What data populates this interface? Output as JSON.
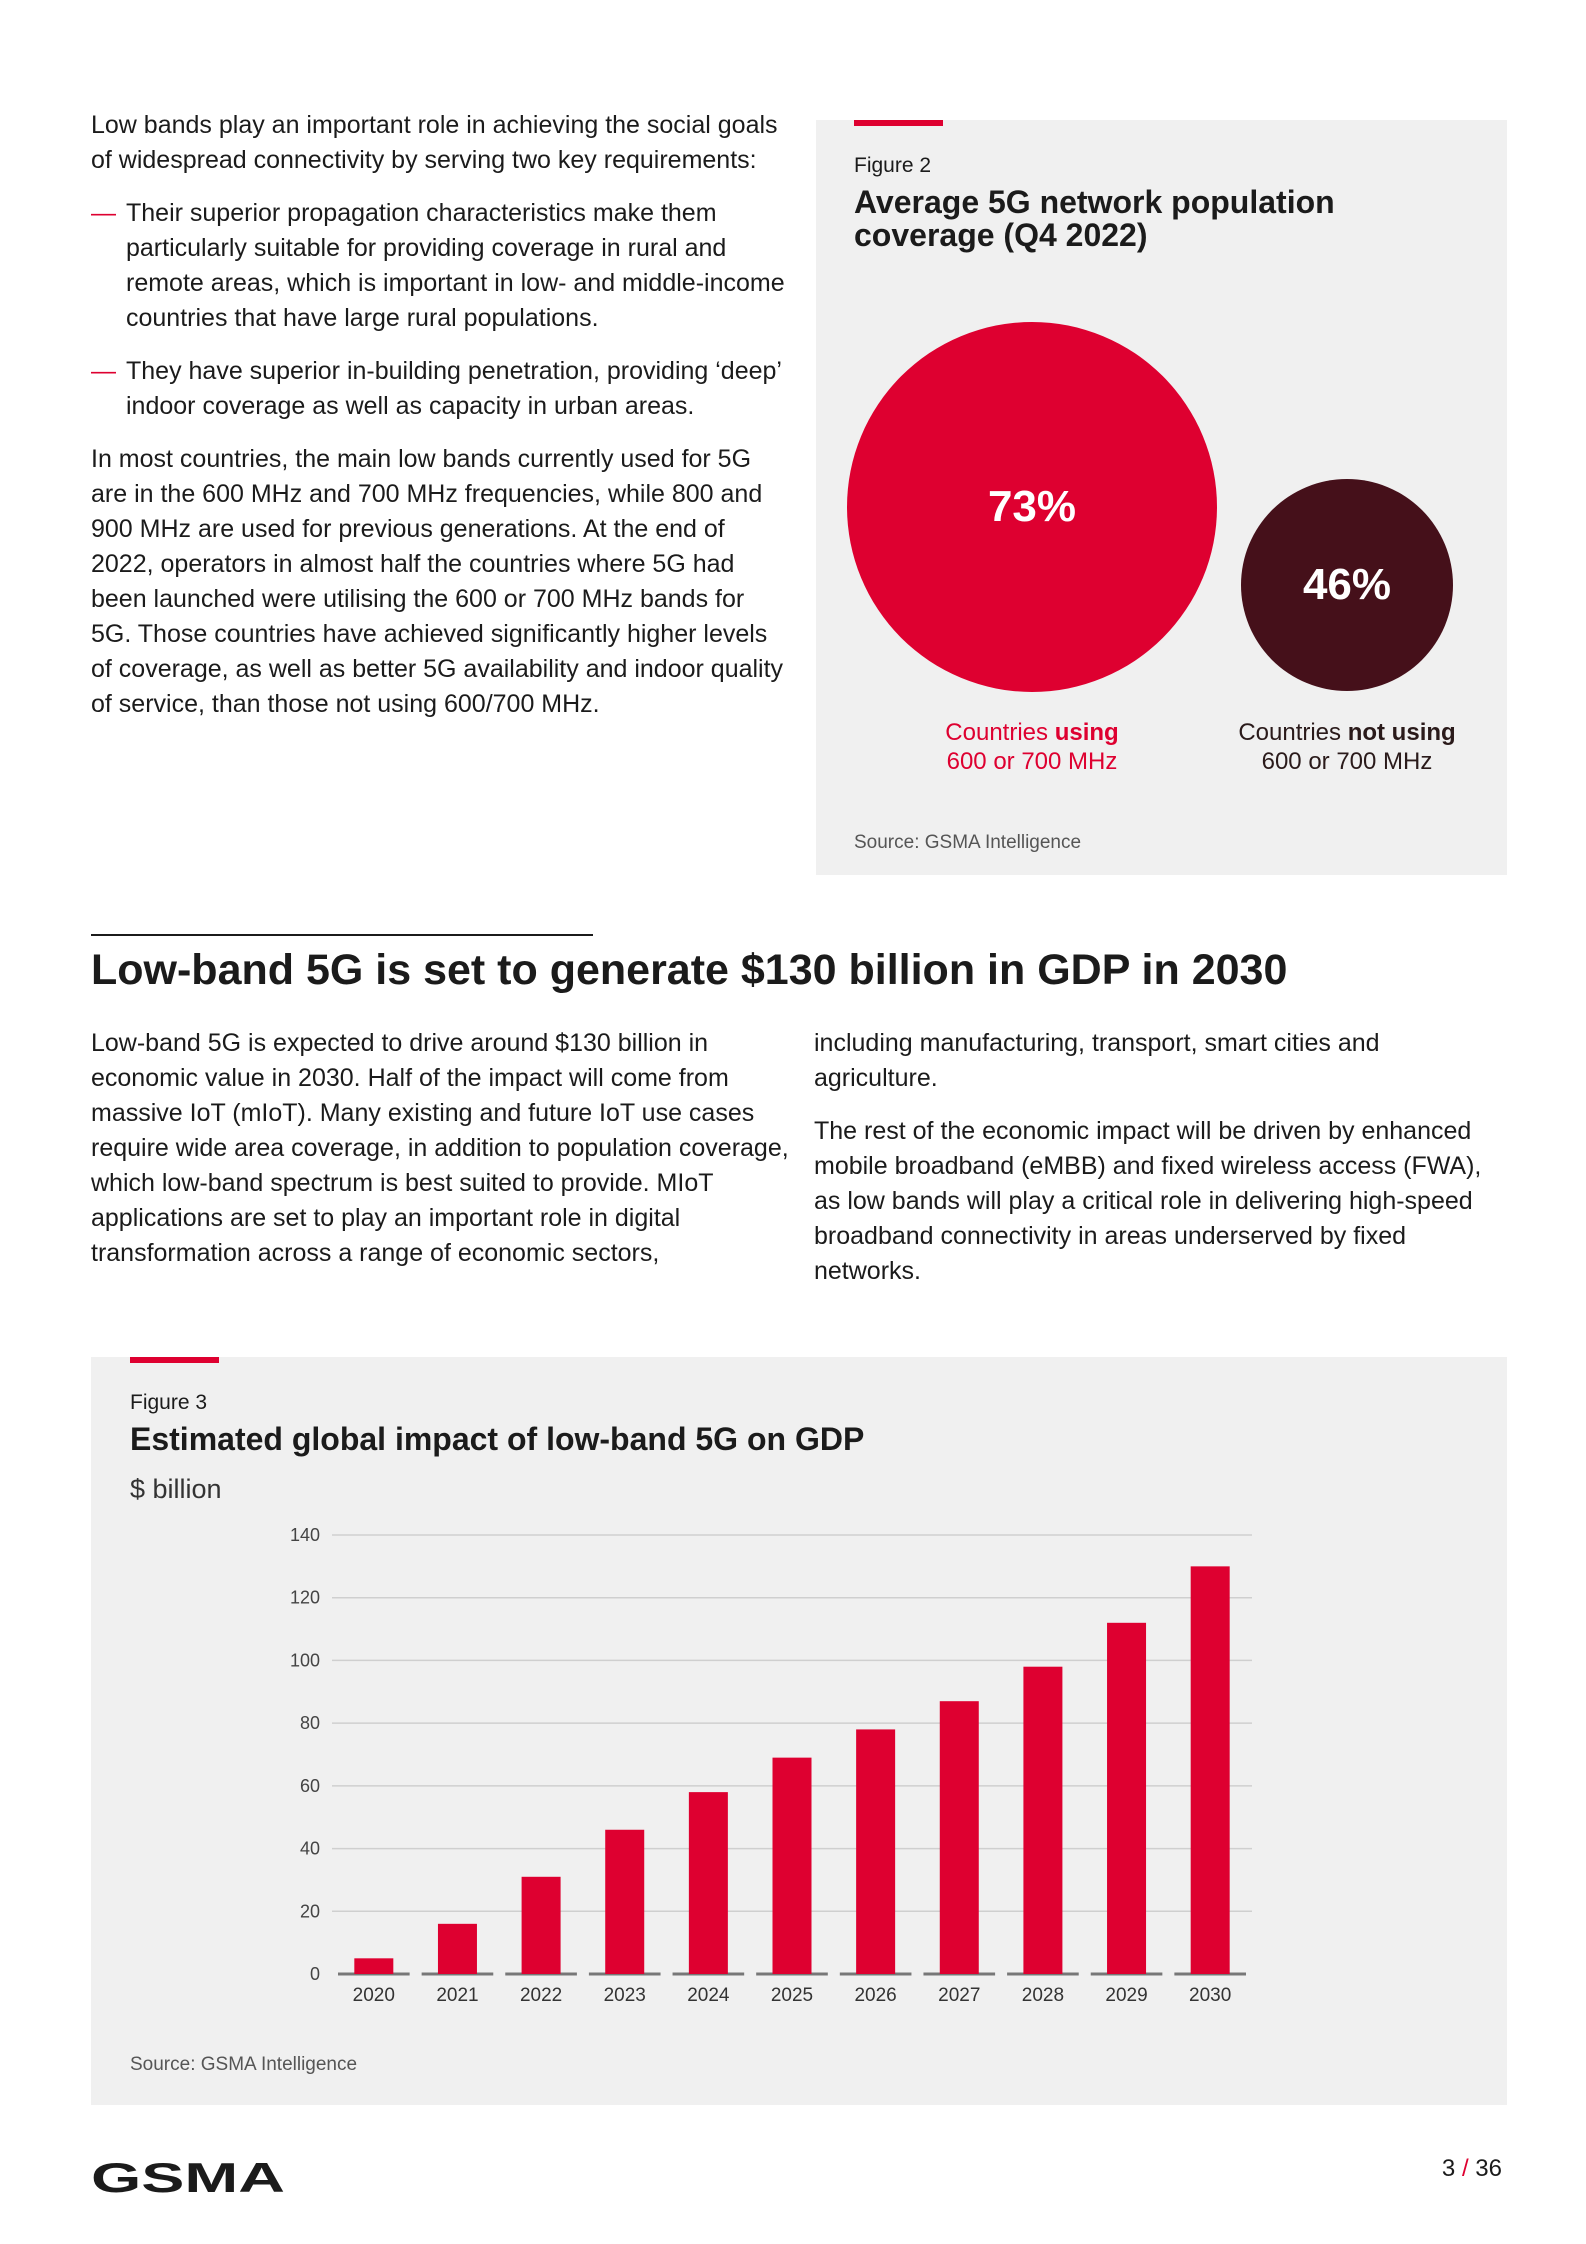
{
  "intro": {
    "paragraph1": "Low bands play an important role in achieving the social goals of widespread connectivity by serving two key requirements:",
    "bullets": [
      "Their superior propagation characteristics make them particularly suitable for providing coverage in rural and remote areas, which is important in low- and middle-income countries that have large rural populations.",
      "They have superior in-building penetration, providing ‘deep’ indoor coverage as well as capacity in urban areas."
    ],
    "bullet_mark": "—",
    "paragraph2": "In most countries, the main low bands currently used for 5G are in the 600 MHz and 700 MHz frequencies, while 800 and 900 MHz are used for previous generations. At the end of 2022, operators in almost half the countries where 5G had been launched were utilising the 600 or 700 MHz bands for 5G. Those countries have achieved significantly higher levels of coverage, as well as better 5G availability and indoor quality of service, than those not using 600/700 MHz."
  },
  "figure2": {
    "label": "Figure 2",
    "title": "Average 5G network population coverage (Q4 2022)",
    "bubbles": [
      {
        "value": "73%",
        "label_pre": "Countries ",
        "label_bold": "using",
        "label_line2": "600 or 700 MHz",
        "color": "#de0030"
      },
      {
        "value": "46%",
        "label_pre": "Countries ",
        "label_bold": "not using",
        "label_line2": "600 or 700 MHz",
        "color": "#45101a"
      }
    ],
    "source": "Source: GSMA Intelligence"
  },
  "section": {
    "heading": "Low-band 5G is set to generate $130 billion in GDP in 2030",
    "col1": "Low-band 5G is expected to drive around $130 billion in economic value in 2030. Half of the impact will come from massive IoT (mIoT). Many existing and future IoT use cases require wide area coverage, in addition to population coverage, which low-band spectrum is best suited to provide. MIoT applications are set to play an important role in digital transformation across a range of economic sectors,",
    "col2a": "including manufacturing, transport, smart cities and agriculture.",
    "col2b": "The rest of the economic impact will be driven by enhanced mobile broadband (eMBB) and fixed wireless access (FWA), as low bands will play a critical role in delivering high-speed broadband connectivity in areas underserved by fixed networks."
  },
  "figure3": {
    "label": "Figure 3",
    "source": "Source: GSMA Intelligence"
  },
  "chart_data": {
    "type": "bar",
    "title": "Estimated global impact of low-band 5G on GDP",
    "ylabel": "$ billion",
    "xlabel": "",
    "categories": [
      "2020",
      "2021",
      "2022",
      "2023",
      "2024",
      "2025",
      "2026",
      "2027",
      "2028",
      "2029",
      "2030"
    ],
    "values": [
      5,
      16,
      31,
      46,
      58,
      69,
      78,
      87,
      98,
      112,
      130
    ],
    "ylim": [
      0,
      140
    ],
    "yticks": [
      "0",
      "20",
      "40",
      "60",
      "80",
      "100",
      "120",
      "140"
    ],
    "grid": true,
    "color": "#de0030"
  },
  "footer": {
    "logo": "GSMA",
    "page_current": "3",
    "page_sep": "/",
    "page_total": "36"
  }
}
